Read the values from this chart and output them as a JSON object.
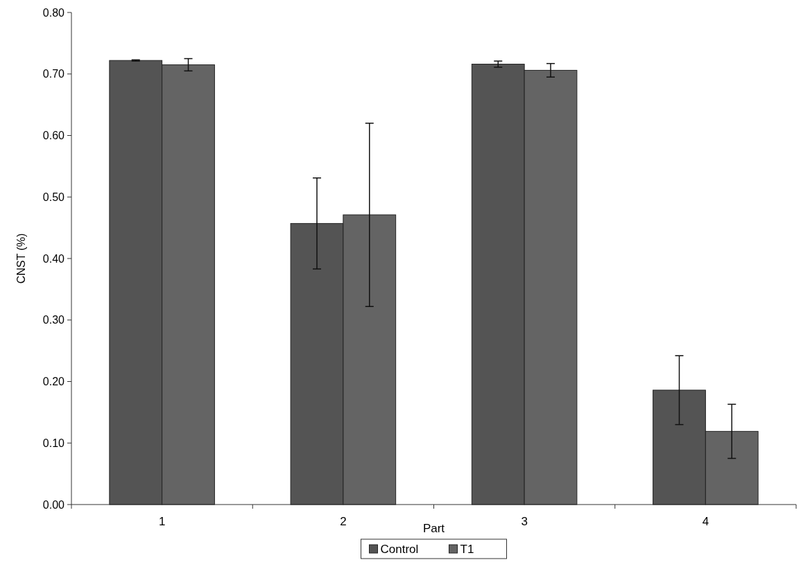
{
  "chart_data": {
    "type": "bar",
    "xlabel": "Part",
    "ylabel": "CNST (%)",
    "categories": [
      "1",
      "2",
      "3",
      "4"
    ],
    "series": [
      {
        "name": "Control",
        "color": "#545454",
        "values": [
          0.722,
          0.457,
          0.716,
          0.186
        ],
        "errors": [
          0.001,
          0.074,
          0.005,
          0.056
        ]
      },
      {
        "name": "T1",
        "color": "#646464",
        "values": [
          0.715,
          0.471,
          0.706,
          0.119
        ],
        "errors": [
          0.01,
          0.149,
          0.011,
          0.044
        ]
      }
    ],
    "ylim": [
      0,
      0.8
    ],
    "yticks": [
      {
        "value": 0,
        "label": "0.00"
      },
      {
        "value": 0.1,
        "label": "0.10"
      },
      {
        "value": 0.2,
        "label": "0.20"
      },
      {
        "value": 0.3,
        "label": "0.30"
      },
      {
        "value": 0.4,
        "label": "0.40"
      },
      {
        "value": 0.5,
        "label": "0.50"
      },
      {
        "value": 0.6,
        "label": "0.60"
      },
      {
        "value": 0.7,
        "label": "0.70"
      },
      {
        "value": 0.8,
        "label": "0.80"
      }
    ],
    "grid": false,
    "legend": "bottom"
  }
}
